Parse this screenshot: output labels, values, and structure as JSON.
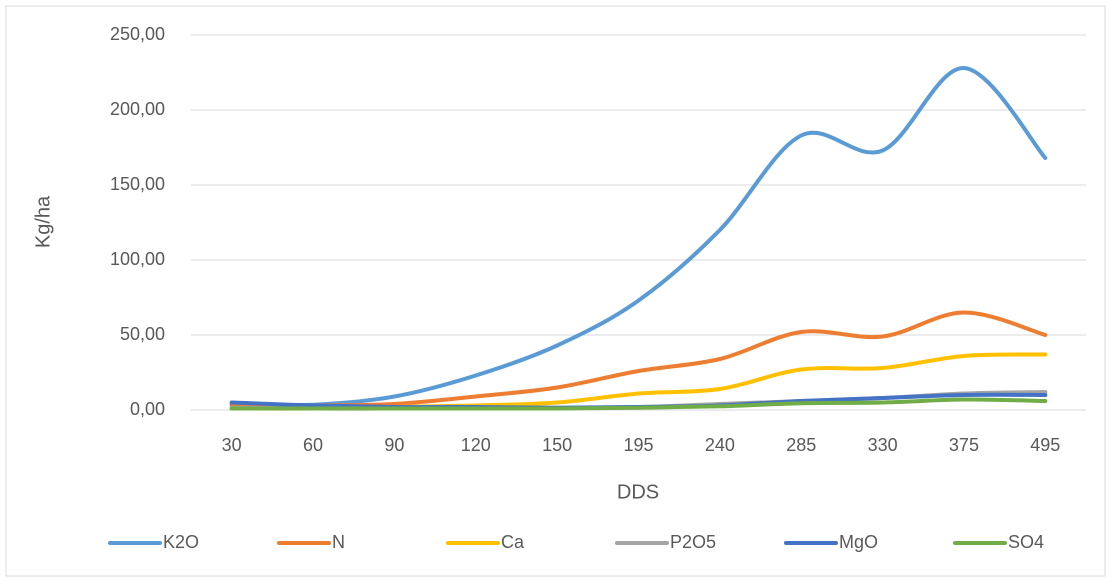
{
  "chart_data": {
    "type": "line",
    "x_label": "DDS",
    "y_label": "Kg/ha",
    "categories": [
      "30",
      "60",
      "90",
      "120",
      "150",
      "195",
      "240",
      "285",
      "330",
      "375",
      "495"
    ],
    "series": [
      {
        "name": "K2O",
        "color": "#5b9bd5",
        "values": [
          4,
          3.5,
          9,
          23,
          43,
          73,
          120,
          183,
          173,
          228,
          168
        ]
      },
      {
        "name": "N",
        "color": "#ed7d31",
        "values": [
          3,
          3,
          4,
          9,
          15,
          26,
          34,
          52,
          49,
          65,
          50
        ]
      },
      {
        "name": "Ca",
        "color": "#ffc000",
        "values": [
          1,
          1,
          2,
          3,
          5,
          11,
          14,
          27,
          28,
          36,
          37
        ]
      },
      {
        "name": "P2O5",
        "color": "#a5a5a5",
        "values": [
          1.5,
          1,
          1,
          1.5,
          1.5,
          2,
          4,
          6,
          8,
          11,
          12
        ]
      },
      {
        "name": "MgO",
        "color": "#4472c4",
        "values": [
          5,
          3,
          2,
          2,
          1.5,
          2,
          3,
          6,
          8,
          10,
          10
        ]
      },
      {
        "name": "SO4",
        "color": "#70ad47",
        "values": [
          1,
          1,
          1,
          1,
          1,
          1.5,
          2.5,
          4.5,
          5,
          7,
          6
        ]
      }
    ],
    "ylim": [
      0,
      250
    ],
    "yticks": [
      {
        "value": 0,
        "label": "0,00"
      },
      {
        "value": 50,
        "label": "50,00"
      },
      {
        "value": 100,
        "label": "100,00"
      },
      {
        "value": 150,
        "label": "150,00"
      },
      {
        "value": 200,
        "label": "200,00"
      },
      {
        "value": 250,
        "label": "250,00"
      }
    ],
    "grid": true,
    "legend": "bottom"
  }
}
